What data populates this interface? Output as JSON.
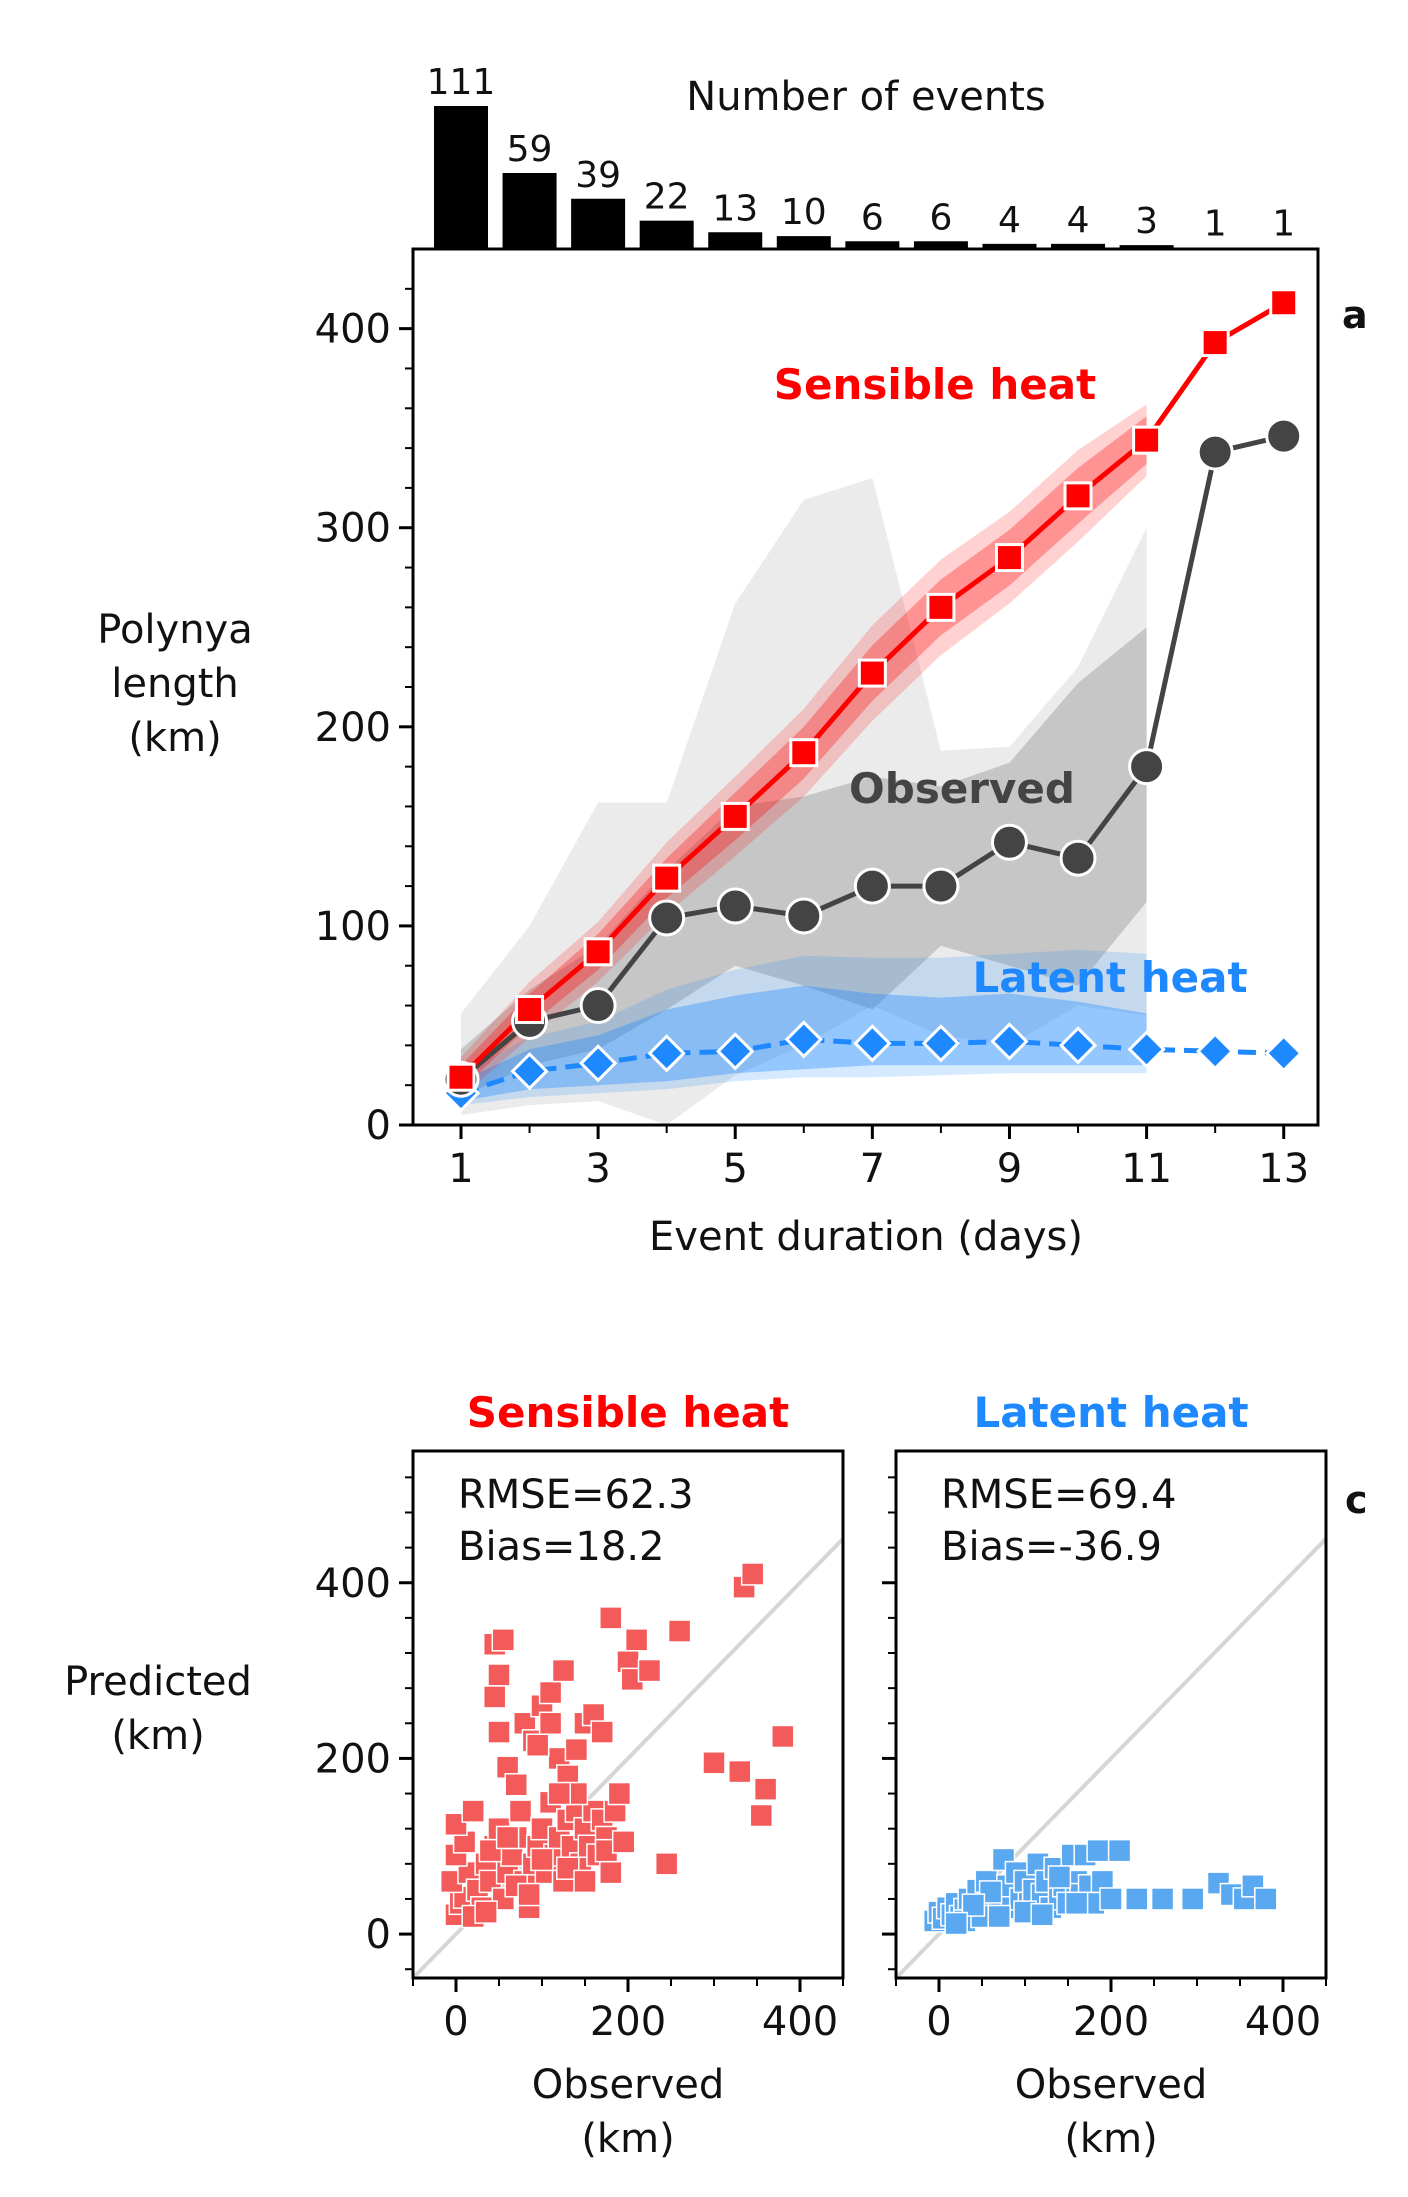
{
  "chart_data": [
    {
      "type": "bar",
      "title": "Number of events",
      "categories": [
        1,
        2,
        3,
        4,
        5,
        6,
        7,
        8,
        9,
        10,
        11,
        12,
        13
      ],
      "values": [
        111,
        59,
        39,
        22,
        13,
        10,
        6,
        6,
        4,
        4,
        3,
        1,
        1
      ],
      "data_labels": [
        "111",
        "59",
        "39",
        "22",
        "13",
        "10",
        "6",
        "6",
        "4",
        "4",
        "3",
        "1",
        "1"
      ],
      "colors": {
        "bar": "#000000"
      }
    },
    {
      "type": "line",
      "panel_label": "a",
      "xlabel": "Event duration (days)",
      "ylabel_lines": [
        "Polynya",
        "length",
        "(km)"
      ],
      "xlim": [
        0.3,
        13.5
      ],
      "ylim": [
        0,
        440
      ],
      "xticks": [
        1,
        3,
        5,
        7,
        9,
        11,
        13
      ],
      "yticks": [
        0,
        100,
        200,
        300,
        400
      ],
      "series": [
        {
          "name": "Sensible heat",
          "color": "#ff0000",
          "marker": "square",
          "x": [
            1,
            2,
            3,
            4,
            5,
            6,
            7,
            8,
            9,
            10,
            11,
            12,
            13
          ],
          "values": [
            24,
            58,
            87,
            124,
            155,
            187,
            227,
            260,
            285,
            316,
            344,
            393,
            413
          ],
          "band_inner": [
            [
              18,
              30
            ],
            [
              50,
              66
            ],
            [
              78,
              96
            ],
            [
              114,
              134
            ],
            [
              143,
              167
            ],
            [
              174,
              200
            ],
            [
              213,
              241
            ],
            [
              246,
              274
            ],
            [
              271,
              299
            ],
            [
              302,
              330
            ],
            [
              332,
              356
            ],
            null,
            null
          ],
          "band_outer": [
            [
              14,
              34
            ],
            [
              44,
              72
            ],
            [
              72,
              102
            ],
            [
              106,
              142
            ],
            [
              135,
              175
            ],
            [
              165,
              209
            ],
            [
              203,
              251
            ],
            [
              236,
              284
            ],
            [
              262,
              308
            ],
            [
              293,
              339
            ],
            [
              326,
              362
            ],
            null,
            null
          ]
        },
        {
          "name": "Observed",
          "color": "#444444",
          "marker": "circle",
          "x": [
            1,
            2,
            3,
            4,
            5,
            6,
            7,
            8,
            9,
            10,
            11,
            12,
            13
          ],
          "values": [
            23,
            52,
            60,
            104,
            110,
            105,
            120,
            120,
            142,
            134,
            180,
            338,
            346
          ],
          "band_inner": [
            [
              14,
              38
            ],
            [
              30,
              68
            ],
            [
              38,
              90
            ],
            [
              58,
              128
            ],
            [
              80,
              160
            ],
            [
              70,
              165
            ],
            [
              58,
              175
            ],
            [
              90,
              170
            ],
            [
              80,
              182
            ],
            [
              70,
              222
            ],
            [
              112,
              250
            ],
            null,
            null
          ],
          "band_outer": [
            [
              5,
              56
            ],
            [
              10,
              100
            ],
            [
              12,
              162
            ],
            [
              0,
              162
            ],
            [
              25,
              262
            ],
            [
              40,
              314
            ],
            [
              60,
              325
            ],
            [
              45,
              188
            ],
            [
              40,
              190
            ],
            [
              60,
              230
            ],
            [
              55,
              300
            ],
            null,
            null
          ]
        },
        {
          "name": "Latent heat",
          "color": "#1e88ff",
          "marker": "diamond",
          "x": [
            1,
            2,
            3,
            4,
            5,
            6,
            7,
            8,
            9,
            10,
            11,
            12,
            13
          ],
          "values": [
            16,
            27,
            31,
            36,
            37,
            43,
            41,
            41,
            42,
            40,
            38,
            37,
            36
          ],
          "band_inner": [
            [
              12,
              22
            ],
            [
              18,
              38
            ],
            [
              20,
              45
            ],
            [
              22,
              58
            ],
            [
              26,
              65
            ],
            [
              28,
              70
            ],
            [
              30,
              66
            ],
            [
              30,
              64
            ],
            [
              30,
              66
            ],
            [
              30,
              62
            ],
            [
              30,
              56
            ],
            null,
            null
          ],
          "band_outer": [
            [
              10,
              26
            ],
            [
              14,
              44
            ],
            [
              16,
              52
            ],
            [
              18,
              68
            ],
            [
              22,
              78
            ],
            [
              24,
              85
            ],
            [
              24,
              84
            ],
            [
              25,
              84
            ],
            [
              26,
              86
            ],
            [
              26,
              88
            ],
            [
              26,
              86
            ],
            null,
            null
          ]
        }
      ]
    },
    {
      "type": "scatter",
      "title": "Sensible heat",
      "panel_label": "c",
      "xlabel_lines": [
        "Observed",
        "(km)"
      ],
      "ylabel_lines": [
        "Predicted",
        "(km)"
      ],
      "stats": [
        "RMSE=62.3",
        "Bias=18.2"
      ],
      "xlim": [
        -50,
        450
      ],
      "ylim": [
        -50,
        550
      ],
      "xticks": [
        0,
        200,
        400
      ],
      "yticks": [
        0,
        200,
        400
      ],
      "color": "#f35a5a",
      "points": [
        [
          0,
          22
        ],
        [
          5,
          35
        ],
        [
          10,
          42
        ],
        [
          -5,
          60
        ],
        [
          15,
          70
        ],
        [
          0,
          90
        ],
        [
          10,
          105
        ],
        [
          0,
          125
        ],
        [
          20,
          140
        ],
        [
          25,
          50
        ],
        [
          30,
          30
        ],
        [
          35,
          80
        ],
        [
          40,
          60
        ],
        [
          45,
          100
        ],
        [
          50,
          120
        ],
        [
          55,
          40
        ],
        [
          60,
          70
        ],
        [
          65,
          90
        ],
        [
          70,
          110
        ],
        [
          75,
          140
        ],
        [
          80,
          60
        ],
        [
          85,
          30
        ],
        [
          90,
          80
        ],
        [
          95,
          100
        ],
        [
          100,
          120
        ],
        [
          105,
          70
        ],
        [
          110,
          150
        ],
        [
          115,
          90
        ],
        [
          120,
          110
        ],
        [
          125,
          60
        ],
        [
          130,
          130
        ],
        [
          135,
          100
        ],
        [
          140,
          140
        ],
        [
          145,
          80
        ],
        [
          150,
          120
        ],
        [
          155,
          100
        ],
        [
          160,
          140
        ],
        [
          165,
          90
        ],
        [
          170,
          130
        ],
        [
          175,
          110
        ],
        [
          180,
          70
        ],
        [
          185,
          140
        ],
        [
          190,
          160
        ],
        [
          50,
          230
        ],
        [
          60,
          190
        ],
        [
          70,
          170
        ],
        [
          80,
          240
        ],
        [
          90,
          220
        ],
        [
          100,
          260
        ],
        [
          110,
          240
        ],
        [
          120,
          200
        ],
        [
          130,
          180
        ],
        [
          140,
          210
        ],
        [
          150,
          240
        ],
        [
          160,
          250
        ],
        [
          170,
          230
        ],
        [
          45,
          330
        ],
        [
          55,
          335
        ],
        [
          50,
          295
        ],
        [
          45,
          270
        ],
        [
          95,
          215
        ],
        [
          110,
          275
        ],
        [
          125,
          300
        ],
        [
          210,
          335
        ],
        [
          180,
          360
        ],
        [
          200,
          310
        ],
        [
          205,
          290
        ],
        [
          225,
          300
        ],
        [
          260,
          345
        ],
        [
          245,
          80
        ],
        [
          300,
          195
        ],
        [
          330,
          185
        ],
        [
          355,
          135
        ],
        [
          360,
          165
        ],
        [
          380,
          225
        ],
        [
          335,
          395
        ],
        [
          345,
          410
        ],
        [
          70,
          55
        ],
        [
          85,
          45
        ],
        [
          20,
          20
        ],
        [
          40,
          95
        ],
        [
          60,
          110
        ],
        [
          100,
          85
        ],
        [
          130,
          75
        ],
        [
          150,
          60
        ],
        [
          175,
          95
        ],
        [
          195,
          105
        ],
        [
          140,
          160
        ],
        [
          120,
          160
        ],
        [
          35,
          25
        ]
      ]
    },
    {
      "type": "scatter",
      "title": "Latent heat",
      "xlabel_lines": [
        "Observed",
        "(km)"
      ],
      "stats": [
        "RMSE=69.4",
        "Bias=-36.9"
      ],
      "xlim": [
        -50,
        450
      ],
      "ylim": [
        -50,
        550
      ],
      "xticks": [
        0,
        200,
        400
      ],
      "yticks": [
        0,
        200,
        400
      ],
      "color": "#5aa9f0",
      "points": [
        [
          -5,
          15
        ],
        [
          0,
          25
        ],
        [
          5,
          18
        ],
        [
          10,
          30
        ],
        [
          15,
          22
        ],
        [
          20,
          35
        ],
        [
          25,
          20
        ],
        [
          30,
          28
        ],
        [
          35,
          40
        ],
        [
          40,
          22
        ],
        [
          45,
          50
        ],
        [
          50,
          30
        ],
        [
          55,
          60
        ],
        [
          60,
          35
        ],
        [
          65,
          25
        ],
        [
          70,
          45
        ],
        [
          75,
          85
        ],
        [
          80,
          55
        ],
        [
          85,
          30
        ],
        [
          90,
          70
        ],
        [
          95,
          40
        ],
        [
          100,
          60
        ],
        [
          105,
          35
        ],
        [
          110,
          50
        ],
        [
          115,
          80
        ],
        [
          120,
          45
        ],
        [
          125,
          60
        ],
        [
          130,
          30
        ],
        [
          135,
          75
        ],
        [
          140,
          40
        ],
        [
          145,
          55
        ],
        [
          150,
          35
        ],
        [
          155,
          90
        ],
        [
          160,
          60
        ],
        [
          165,
          45
        ],
        [
          170,
          90
        ],
        [
          175,
          55
        ],
        [
          180,
          35
        ],
        [
          185,
          95
        ],
        [
          190,
          60
        ],
        [
          200,
          40
        ],
        [
          210,
          95
        ],
        [
          230,
          40
        ],
        [
          260,
          40
        ],
        [
          295,
          40
        ],
        [
          325,
          58
        ],
        [
          340,
          45
        ],
        [
          355,
          40
        ],
        [
          365,
          55
        ],
        [
          380,
          40
        ],
        [
          30,
          15
        ],
        [
          50,
          20
        ],
        [
          70,
          20
        ],
        [
          100,
          25
        ],
        [
          120,
          22
        ],
        [
          60,
          48
        ],
        [
          40,
          33
        ],
        [
          20,
          12
        ],
        [
          140,
          65
        ],
        [
          160,
          35
        ]
      ]
    }
  ]
}
